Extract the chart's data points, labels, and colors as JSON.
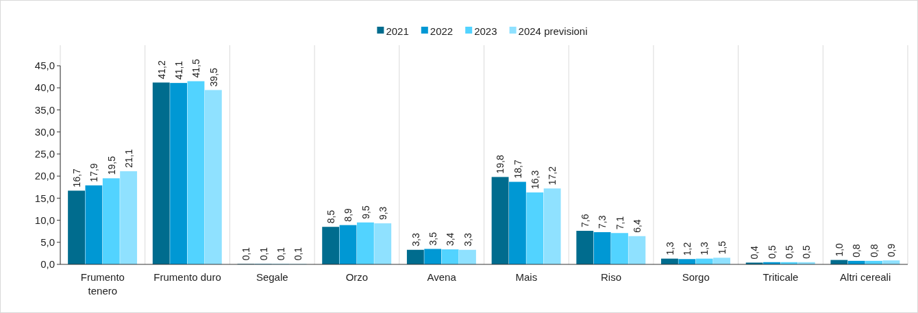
{
  "chart_data": {
    "type": "bar",
    "categories": [
      "Frumento tenero",
      "Frumento duro",
      "Segale",
      "Orzo",
      "Avena",
      "Mais",
      "Riso",
      "Sorgo",
      "Triticale",
      "Altri cereali"
    ],
    "series": [
      {
        "name": "2021",
        "color": "#006c8e",
        "values": [
          16.7,
          41.2,
          0.1,
          8.5,
          3.3,
          19.8,
          7.6,
          1.3,
          0.4,
          1.0
        ],
        "value_labels": [
          "16,7",
          "41,2",
          "0,1",
          "8,5",
          "3,3",
          "19,8",
          "7,6",
          "1,3",
          "0,4",
          "1,0"
        ]
      },
      {
        "name": "2022",
        "color": "#0098d4",
        "values": [
          17.9,
          41.1,
          0.1,
          8.9,
          3.5,
          18.7,
          7.3,
          1.2,
          0.5,
          0.8
        ],
        "value_labels": [
          "17,9",
          "41,1",
          "0,1",
          "8,9",
          "3,5",
          "18,7",
          "7,3",
          "1,2",
          "0,5",
          "0,8"
        ]
      },
      {
        "name": "2023",
        "color": "#52d3ff",
        "values": [
          19.5,
          41.5,
          0.1,
          9.5,
          3.4,
          16.3,
          7.1,
          1.3,
          0.5,
          0.8
        ],
        "value_labels": [
          "19,5",
          "41,5",
          "0,1",
          "9,5",
          "3,4",
          "16,3",
          "7,1",
          "1,3",
          "0,5",
          "0,8"
        ]
      },
      {
        "name": "2024 previsioni",
        "color": "#8fe1ff",
        "values": [
          21.1,
          39.5,
          0.1,
          9.3,
          3.3,
          17.2,
          6.4,
          1.5,
          0.5,
          0.9
        ],
        "value_labels": [
          "21,1",
          "39,5",
          "0,1",
          "9,3",
          "3,3",
          "17,2",
          "6,4",
          "1,5",
          "0,5",
          "0,9"
        ]
      }
    ],
    "ylim": [
      0,
      45
    ],
    "yticks": [
      {
        "value": 0,
        "label": "0,0"
      },
      {
        "value": 5,
        "label": "5,0"
      },
      {
        "value": 10,
        "label": "10,0"
      },
      {
        "value": 15,
        "label": "15,0"
      },
      {
        "value": 20,
        "label": "20,0"
      },
      {
        "value": 25,
        "label": "25,0"
      },
      {
        "value": 30,
        "label": "30,0"
      },
      {
        "value": 35,
        "label": "35,0"
      },
      {
        "value": 40,
        "label": "40,0"
      },
      {
        "value": 45,
        "label": "45,0"
      }
    ],
    "grid": "x",
    "legend": "top"
  }
}
